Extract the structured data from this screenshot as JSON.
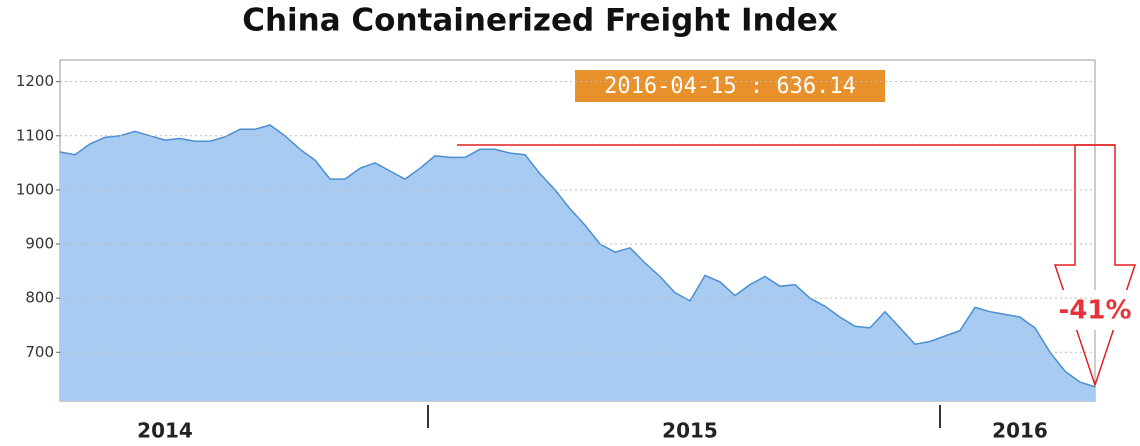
{
  "chart_data": {
    "type": "area",
    "title": "China Containerized Freight Index",
    "categories": [
      null,
      null,
      null,
      null,
      null,
      null,
      null,
      "2014",
      null,
      null,
      null,
      null,
      null,
      null,
      null,
      null,
      null,
      null,
      null,
      null,
      null,
      null,
      null,
      null,
      null,
      null,
      null,
      null,
      null,
      null,
      null,
      null,
      null,
      null,
      null,
      null,
      null,
      null,
      null,
      null,
      null,
      null,
      "2015",
      null,
      null,
      null,
      null,
      null,
      null,
      null,
      null,
      null,
      null,
      null,
      null,
      null,
      null,
      null,
      null,
      null,
      null,
      null,
      null,
      null,
      "2016",
      null,
      null,
      null,
      null,
      null
    ],
    "values": [
      1070,
      1065,
      1085,
      1097,
      1100,
      1108,
      1100,
      1092,
      1095,
      1090,
      1090,
      1098,
      1112,
      1112,
      1120,
      1100,
      1075,
      1055,
      1020,
      1020,
      1040,
      1050,
      1035,
      1020,
      1040,
      1063,
      1060,
      1060,
      1075,
      1075,
      1068,
      1065,
      1030,
      1000,
      965,
      935,
      900,
      885,
      893,
      865,
      840,
      810,
      795,
      842,
      830,
      805,
      825,
      840,
      822,
      825,
      800,
      785,
      765,
      748,
      745,
      775,
      745,
      715,
      720,
      730,
      740,
      783,
      775,
      770,
      765,
      745,
      700,
      665,
      645,
      636.14
    ],
    "color": "#a8cbf2",
    "line_color": "#4a8fd1",
    "ylim": [
      610,
      1240
    ],
    "yticks": [
      700,
      800,
      900,
      1000,
      1100,
      1200
    ],
    "grid": true,
    "annotations": [
      "2016-04-15 : 636.14",
      "-41%"
    ]
  }
}
